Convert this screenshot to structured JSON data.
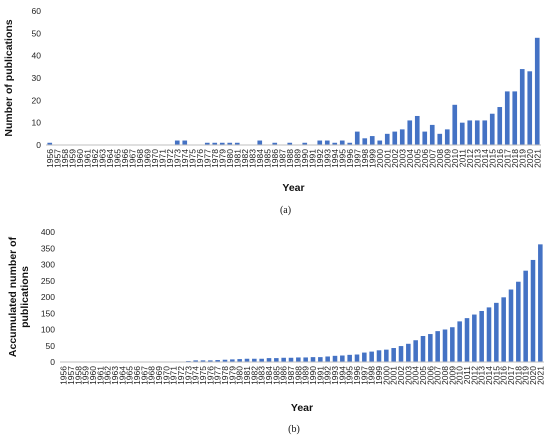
{
  "chart_data": [
    {
      "type": "bar",
      "panel_label": "(a)",
      "xlabel": "Year",
      "ylabel": "Number of publications",
      "ylim": [
        0,
        60
      ],
      "yticks": [
        0,
        10,
        20,
        30,
        40,
        50,
        60
      ],
      "grid": false,
      "bar_color": "#4472C4",
      "categories": [
        "1956",
        "1957",
        "1958",
        "1959",
        "1960",
        "1961",
        "1962",
        "1963",
        "1964",
        "1965",
        "1966",
        "1967",
        "1968",
        "1969",
        "1970",
        "1971",
        "1972",
        "1973",
        "1974",
        "1975",
        "1976",
        "1977",
        "1978",
        "1979",
        "1980",
        "1981",
        "1982",
        "1983",
        "1984",
        "1985",
        "1986",
        "1987",
        "1988",
        "1989",
        "1990",
        "1991",
        "1992",
        "1993",
        "1994",
        "1995",
        "1996",
        "1997",
        "1998",
        "1999",
        "2000",
        "2001",
        "2002",
        "2003",
        "2004",
        "2005",
        "2006",
        "2007",
        "2008",
        "2009",
        "2010",
        "2011",
        "2012",
        "2013",
        "2014",
        "2015",
        "2016",
        "2017",
        "2018",
        "2019",
        "2020",
        "2021"
      ],
      "values": [
        1,
        0,
        0,
        0,
        0,
        0,
        0,
        0,
        0,
        0,
        0,
        0,
        0,
        0,
        0,
        0,
        0,
        2,
        2,
        0,
        0,
        1,
        1,
        1,
        1,
        1,
        0,
        0,
        2,
        0,
        1,
        0,
        1,
        0,
        1,
        0,
        2,
        2,
        1,
        2,
        1,
        6,
        3,
        4,
        2,
        5,
        6,
        7,
        11,
        13,
        6,
        9,
        5,
        7,
        18,
        10,
        11,
        11,
        11,
        14,
        17,
        24,
        24,
        34,
        33,
        48
      ]
    },
    {
      "type": "bar",
      "panel_label": "(b)",
      "xlabel": "Year",
      "ylabel": "Accumulated number of publications",
      "ylim": [
        0,
        400
      ],
      "yticks": [
        0,
        50,
        100,
        150,
        200,
        250,
        300,
        350,
        400
      ],
      "grid": false,
      "bar_color": "#4472C4",
      "categories": [
        "1956",
        "1957",
        "1958",
        "1959",
        "1960",
        "1961",
        "1962",
        "1963",
        "1964",
        "1965",
        "1966",
        "1967",
        "1968",
        "1969",
        "1970",
        "1971",
        "1972",
        "1973",
        "1974",
        "1975",
        "1976",
        "1977",
        "1978",
        "1979",
        "1980",
        "1981",
        "1982",
        "1983",
        "1984",
        "1985",
        "1986",
        "1987",
        "1988",
        "1989",
        "1990",
        "1991",
        "1992",
        "1993",
        "1994",
        "1995",
        "1996",
        "1997",
        "1998",
        "1999",
        "2000",
        "2001",
        "2002",
        "2003",
        "2004",
        "2005",
        "2006",
        "2007",
        "2008",
        "2009",
        "2010",
        "2011",
        "2012",
        "2013",
        "2014",
        "2015",
        "2016",
        "2017",
        "2018",
        "2019",
        "2020",
        "2021"
      ],
      "values": [
        1,
        1,
        1,
        1,
        1,
        1,
        1,
        1,
        1,
        1,
        1,
        1,
        1,
        1,
        1,
        1,
        1,
        3,
        5,
        5,
        5,
        6,
        7,
        8,
        9,
        10,
        10,
        10,
        12,
        12,
        13,
        13,
        14,
        14,
        15,
        15,
        17,
        19,
        20,
        22,
        23,
        29,
        32,
        36,
        38,
        43,
        49,
        56,
        67,
        80,
        86,
        95,
        100,
        107,
        125,
        135,
        146,
        157,
        168,
        182,
        199,
        223,
        247,
        281,
        314,
        362
      ]
    }
  ]
}
